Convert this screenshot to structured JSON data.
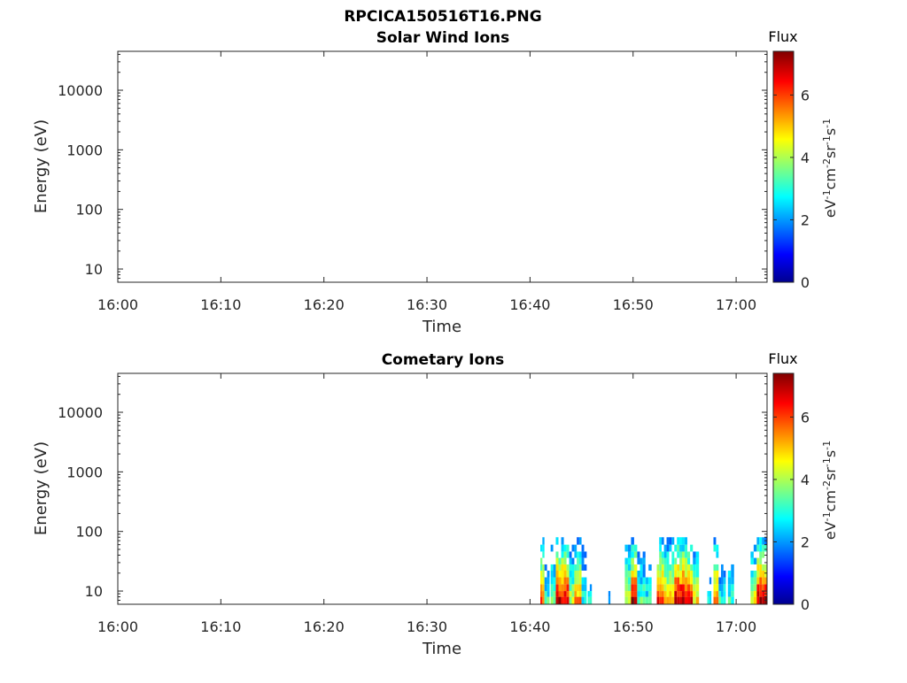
{
  "figure_title": "RPCICA150516T16.PNG",
  "chart_data": [
    {
      "type": "heatmap",
      "title": "Solar Wind Ions",
      "xlabel": "Time",
      "ylabel": "Energy (eV)",
      "x_ticks": [
        "16:00",
        "16:10",
        "16:20",
        "16:30",
        "16:40",
        "16:50",
        "17:00"
      ],
      "y_ticks": [
        "10",
        "100",
        "1000",
        "10000"
      ],
      "y_scale": "log",
      "xlim_minutes": [
        0,
        63
      ],
      "ylim_eV": [
        6,
        45000
      ],
      "colorbar": {
        "title": "Flux",
        "ticks": [
          "0",
          "2",
          "4",
          "6"
        ],
        "range": [
          0,
          7.4
        ],
        "unit": "eV-1cm-2sr-1s-1"
      },
      "colorscale": [
        "#00008f",
        "#0000ff",
        "#00ffff",
        "#ffff00",
        "#ff0000",
        "#800000"
      ],
      "blocks": []
    },
    {
      "type": "heatmap",
      "title": "Cometary Ions",
      "xlabel": "Time",
      "ylabel": "Energy (eV)",
      "x_ticks": [
        "16:00",
        "16:10",
        "16:20",
        "16:30",
        "16:40",
        "16:50",
        "17:00"
      ],
      "y_ticks": [
        "10",
        "100",
        "1000",
        "10000"
      ],
      "y_scale": "log",
      "xlim_minutes": [
        0,
        63
      ],
      "ylim_eV": [
        6,
        45000
      ],
      "colorbar": {
        "title": "Flux",
        "ticks": [
          "0",
          "2",
          "4",
          "6"
        ],
        "range": [
          0,
          7.4
        ],
        "unit": "eV-1cm-2sr-1s-1"
      },
      "colorscale": [
        "#00008f",
        "#0000ff",
        "#00ffff",
        "#ffff00",
        "#ff0000",
        "#800000"
      ],
      "blocks": [
        {
          "t0": 41.0,
          "t1": 41.4,
          "e_max": 80,
          "flux": 5.8
        },
        {
          "t0": 41.4,
          "t1": 41.9,
          "e_max": 40,
          "flux": 3.2
        },
        {
          "t0": 42.0,
          "t1": 42.5,
          "e_max": 80,
          "flux": 3.8
        },
        {
          "t0": 42.5,
          "t1": 43.8,
          "e_max": 80,
          "flux": 6.9
        },
        {
          "t0": 43.8,
          "t1": 44.3,
          "e_max": 60,
          "flux": 4.2
        },
        {
          "t0": 44.3,
          "t1": 45.0,
          "e_max": 80,
          "flux": 5.6
        },
        {
          "t0": 45.0,
          "t1": 45.5,
          "e_max": 70,
          "flux": 3.0
        },
        {
          "t0": 45.6,
          "t1": 46.0,
          "e_max": 20,
          "flux": 2.8
        },
        {
          "t0": 47.6,
          "t1": 47.8,
          "e_max": 12,
          "flux": 2.5
        },
        {
          "t0": 49.2,
          "t1": 49.8,
          "e_max": 80,
          "flux": 4.5
        },
        {
          "t0": 49.8,
          "t1": 50.4,
          "e_max": 80,
          "flux": 6.8
        },
        {
          "t0": 50.4,
          "t1": 51.2,
          "e_max": 80,
          "flux": 3.4
        },
        {
          "t0": 51.2,
          "t1": 51.8,
          "e_max": 50,
          "flux": 3.0
        },
        {
          "t0": 52.3,
          "t1": 53.0,
          "e_max": 80,
          "flux": 6.2
        },
        {
          "t0": 53.0,
          "t1": 54.0,
          "e_max": 80,
          "flux": 5.2
        },
        {
          "t0": 54.0,
          "t1": 55.0,
          "e_max": 80,
          "flux": 7.0
        },
        {
          "t0": 55.0,
          "t1": 55.8,
          "e_max": 80,
          "flux": 6.4
        },
        {
          "t0": 55.8,
          "t1": 56.4,
          "e_max": 70,
          "flux": 4.8
        },
        {
          "t0": 57.2,
          "t1": 57.6,
          "e_max": 20,
          "flux": 2.8
        },
        {
          "t0": 57.8,
          "t1": 58.3,
          "e_max": 80,
          "flux": 6.0
        },
        {
          "t0": 58.3,
          "t1": 59.0,
          "e_max": 40,
          "flux": 3.0
        },
        {
          "t0": 59.2,
          "t1": 59.8,
          "e_max": 80,
          "flux": 3.2
        },
        {
          "t0": 61.4,
          "t1": 62.0,
          "e_max": 60,
          "flux": 4.6
        },
        {
          "t0": 62.0,
          "t1": 63.0,
          "e_max": 80,
          "flux": 7.0
        }
      ]
    }
  ]
}
